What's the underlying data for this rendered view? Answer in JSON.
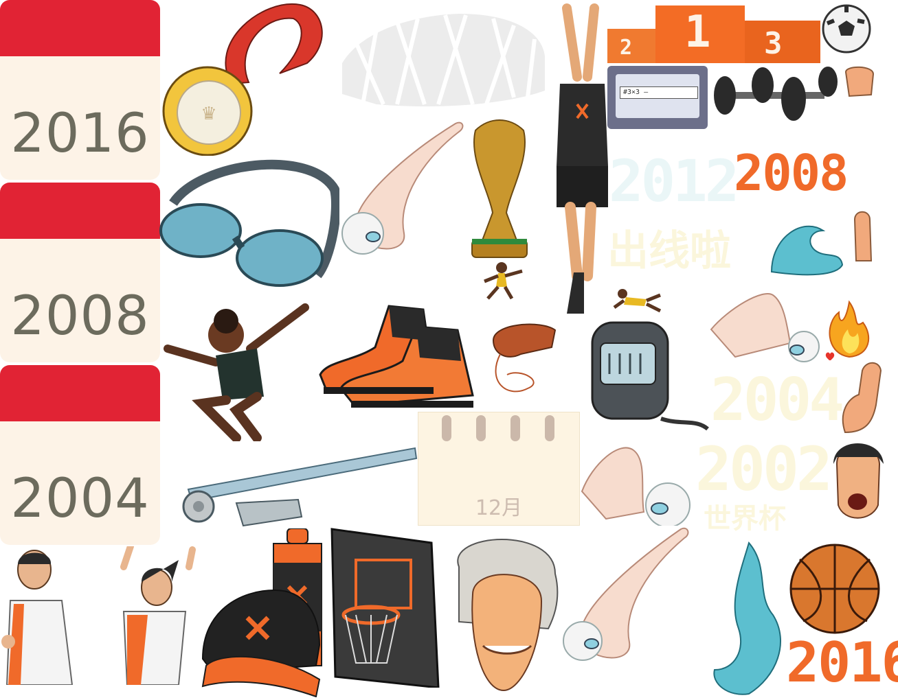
{
  "calendar_cards": [
    {
      "year": "2016"
    },
    {
      "year": "2008"
    },
    {
      "year": "2004"
    }
  ],
  "tear_calendar": {
    "month": "12月"
  },
  "podium": {
    "first": "1",
    "second": "2",
    "third": "3"
  },
  "screen_search": {
    "text": "#3×3 —"
  },
  "stickers": {
    "year_2008": "2008",
    "year_2012": "2012",
    "out_line": "出线啦",
    "year_2004": "2004",
    "year_2002": "2002",
    "world_cup": "世界杯",
    "year_2016": "2016"
  },
  "colors": {
    "card_band": "#e12334",
    "card_bg": "#fdf3e7",
    "year_text": "#6c6b5d",
    "accent_orange": "#f06a2a",
    "sticker_faint": "#fbf6dc",
    "sticker_ice": "#eaf6f7"
  }
}
